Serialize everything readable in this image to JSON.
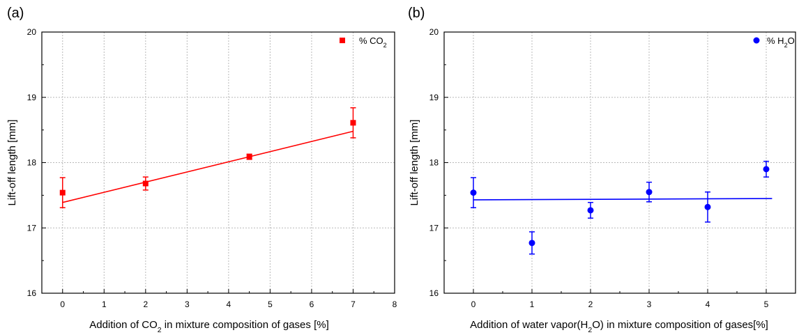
{
  "chart_data": [
    {
      "type": "scatter",
      "panel_label": "(a)",
      "xlabel": {
        "pre": "Addition of CO",
        "sub": "2",
        "post": " in mixture composition of gases [%]"
      },
      "ylabel": "Lift-off length [mm]",
      "xlim": [
        -0.5,
        8
      ],
      "ylim": [
        16,
        20
      ],
      "xticks": [
        0,
        1,
        2,
        3,
        4,
        5,
        6,
        7,
        8
      ],
      "yticks": [
        16,
        17,
        18,
        19,
        20
      ],
      "grid": true,
      "legend_position": "top-right",
      "series": [
        {
          "name": {
            "pre": "% CO",
            "sub": "2",
            "post": ""
          },
          "marker": "square",
          "color": "#ff0000",
          "x": [
            0,
            2,
            4.5,
            7
          ],
          "y": [
            17.54,
            17.68,
            18.09,
            18.61
          ],
          "err": [
            0.23,
            0.1,
            0.04,
            0.23
          ]
        }
      ],
      "fit_line": {
        "x": [
          0,
          7
        ],
        "y": [
          17.39,
          18.48
        ],
        "color": "#ff0000"
      }
    },
    {
      "type": "scatter",
      "panel_label": "(b)",
      "xlabel": {
        "pre": "Addition of water vapor(H",
        "sub": "2",
        "post": "O) in mixture composition of gases[%]"
      },
      "ylabel": "Lift-off length [mm]",
      "xlim": [
        -0.5,
        5.5
      ],
      "ylim": [
        16,
        20
      ],
      "xticks": [
        0,
        1,
        2,
        3,
        4,
        5
      ],
      "yticks": [
        16,
        17,
        18,
        19,
        20
      ],
      "grid": true,
      "legend_position": "top-right",
      "series": [
        {
          "name": {
            "pre": "% H",
            "sub": "2",
            "post": "O"
          },
          "marker": "circle",
          "color": "#0000ff",
          "x": [
            0,
            1,
            2,
            3,
            4,
            5
          ],
          "y": [
            17.54,
            16.77,
            17.27,
            17.55,
            17.32,
            17.9
          ],
          "err": [
            0.23,
            0.17,
            0.12,
            0.15,
            0.23,
            0.12
          ]
        }
      ],
      "fit_line": {
        "x": [
          0,
          5.1
        ],
        "y": [
          17.43,
          17.45
        ],
        "color": "#0000ff"
      }
    }
  ]
}
